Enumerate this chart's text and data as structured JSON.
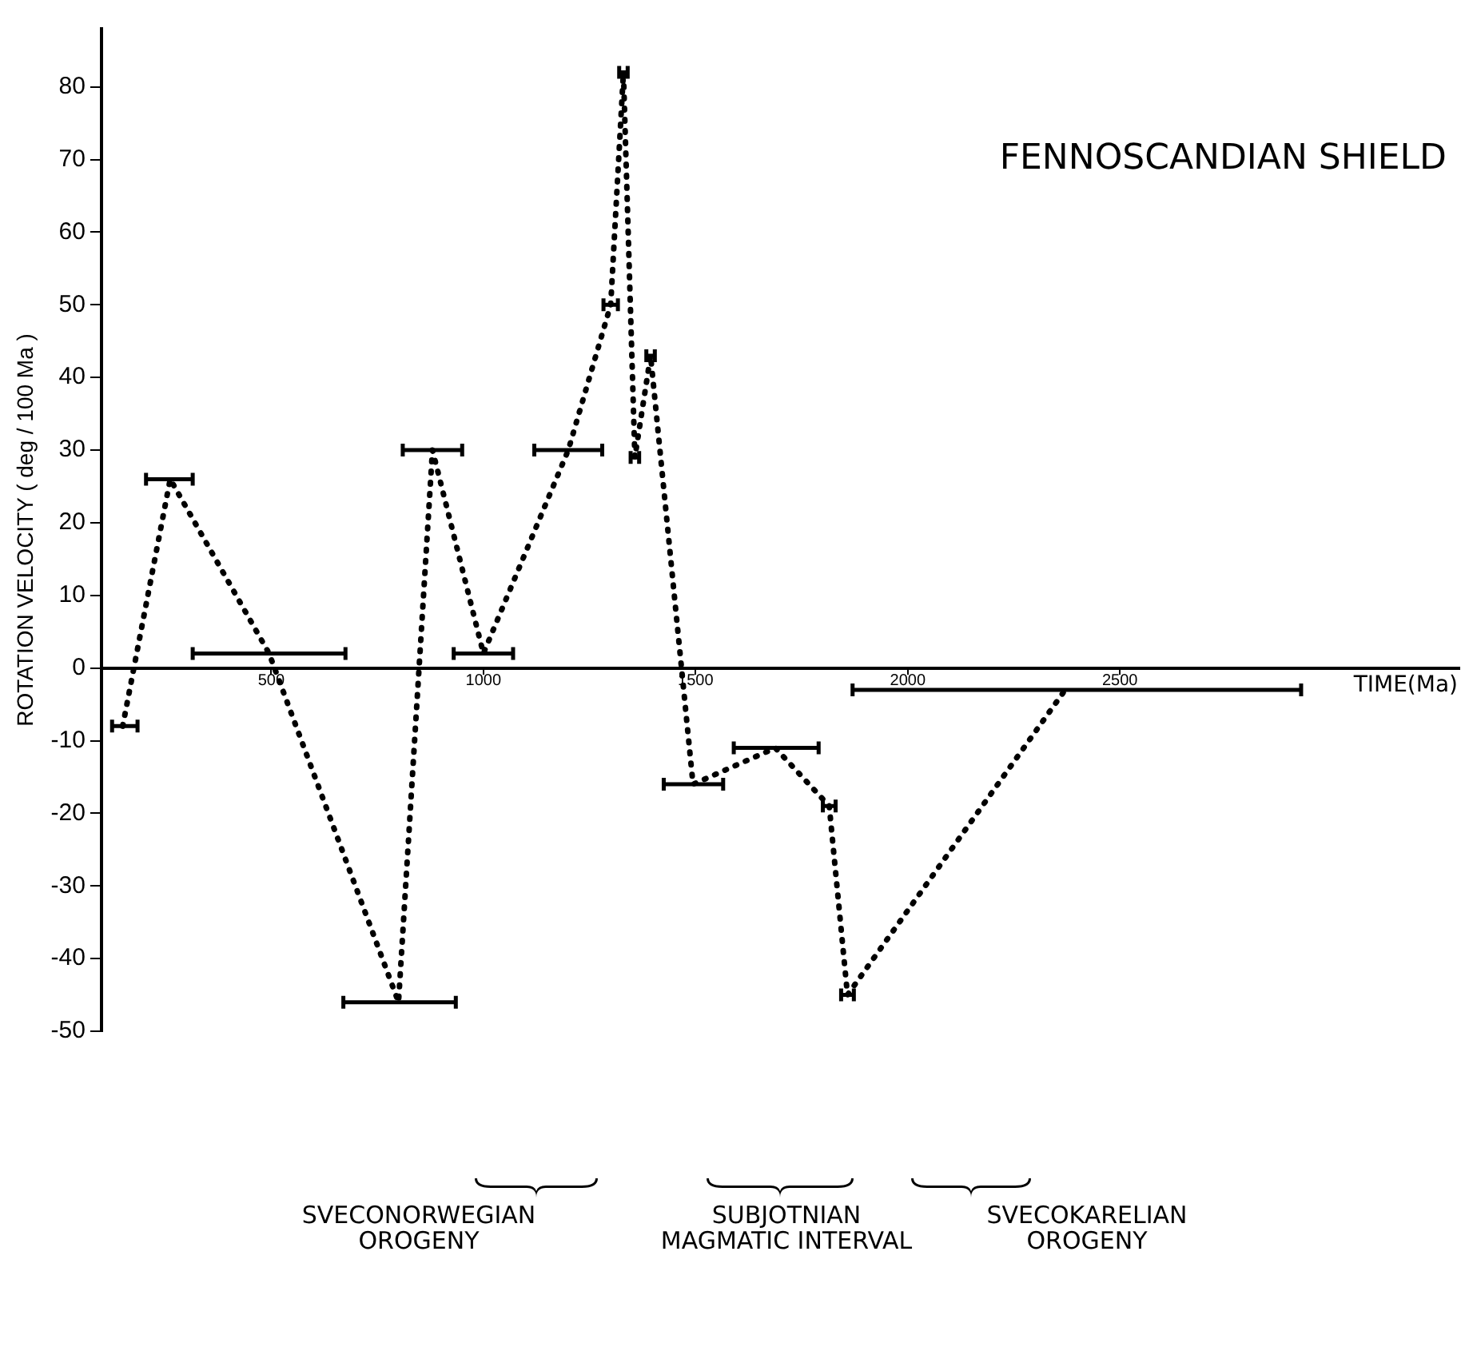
{
  "chart_data": {
    "type": "line",
    "title": "FENNOSCANDIAN SHIELD",
    "xlabel": "TIME(Ma)",
    "ylabel": "ROTATION VELOCITY ( deg / 100 Ma )",
    "x": [
      150,
      262,
      495,
      800,
      880,
      1000,
      1200,
      1300,
      1330,
      1357,
      1394,
      1494,
      1688,
      1815,
      1858,
      2371
    ],
    "series": [
      {
        "color": "#000000",
        "values": [
          -8,
          26,
          2,
          -46,
          30,
          2,
          30,
          50,
          82,
          29,
          43,
          -16,
          -11,
          -19,
          -45,
          -3
        ],
        "xerrors": [
          [
            125,
            185
          ],
          [
            205,
            315
          ],
          [
            315,
            675
          ],
          [
            670,
            935
          ],
          [
            810,
            950
          ],
          [
            930,
            1070
          ],
          [
            1120,
            1280
          ],
          [
            1283,
            1317
          ],
          [
            1320,
            1340
          ],
          [
            1347,
            1367
          ],
          [
            1384,
            1404
          ],
          [
            1425,
            1565
          ],
          [
            1590,
            1790
          ],
          [
            1800,
            1830
          ],
          [
            1843,
            1873
          ],
          [
            1870,
            2927
          ]
        ]
      }
    ],
    "xlim": [
      100,
      3300
    ],
    "xticks": [
      500,
      1000,
      1500,
      2000,
      2500
    ],
    "ylim": [
      -50,
      88
    ],
    "yticks": [
      -50,
      -40,
      -30,
      -20,
      -10,
      0,
      10,
      20,
      30,
      40,
      50,
      60,
      70,
      80
    ],
    "marker": "none",
    "line_style": "dotted",
    "grid": false,
    "legend": false,
    "annotations": [
      "SVECONORWEGIAN\nOROGENY",
      "SUBJOTNIAN\nMAGMATIC INTERVAL",
      "SVECOKARELIAN\nOROGENY"
    ]
  }
}
